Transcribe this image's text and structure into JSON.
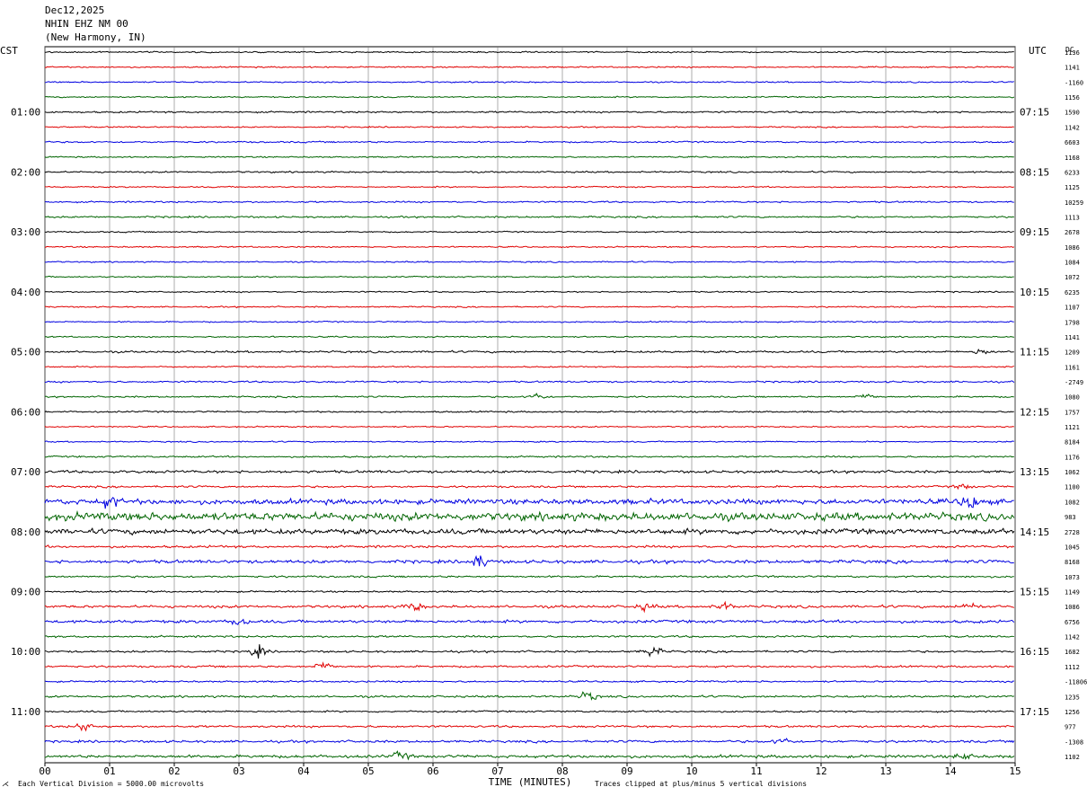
{
  "header": {
    "date": "Dec12,2025",
    "station": "NHIN EHZ NM 00",
    "location": "(New Harmony, IN)"
  },
  "axis": {
    "left_tz": "CST",
    "right_tz": "UTC",
    "dc_header": "DC",
    "xlabel": "TIME (MINUTES)"
  },
  "footer": {
    "scale_note": "Each Vertical Division = 5000.00 microvolts",
    "clip_note": "Traces clipped at plus/minus 5 vertical divisions"
  },
  "chart_data": {
    "type": "line",
    "title": "NHIN EHZ NM 00 helicorder",
    "xlabel": "TIME (MINUTES)",
    "xlim": [
      0,
      15
    ],
    "x_ticks": [
      "00",
      "01",
      "02",
      "03",
      "04",
      "05",
      "06",
      "07",
      "08",
      "09",
      "10",
      "11",
      "12",
      "13",
      "14",
      "15"
    ],
    "row_minutes": 15,
    "trace_count": 48,
    "trace_colors": [
      "#000000",
      "#e00000",
      "#0000e0",
      "#006400"
    ],
    "left_hour_labels": [
      {
        "row": 4,
        "text": "01:00"
      },
      {
        "row": 8,
        "text": "02:00"
      },
      {
        "row": 12,
        "text": "03:00"
      },
      {
        "row": 16,
        "text": "04:00"
      },
      {
        "row": 20,
        "text": "05:00"
      },
      {
        "row": 24,
        "text": "06:00"
      },
      {
        "row": 28,
        "text": "07:00"
      },
      {
        "row": 32,
        "text": "08:00"
      },
      {
        "row": 36,
        "text": "09:00"
      },
      {
        "row": 40,
        "text": "10:00"
      },
      {
        "row": 44,
        "text": "11:00"
      }
    ],
    "right_hour_labels": [
      {
        "row": 4,
        "text": "07:15"
      },
      {
        "row": 8,
        "text": "08:15"
      },
      {
        "row": 12,
        "text": "09:15"
      },
      {
        "row": 16,
        "text": "10:15"
      },
      {
        "row": 20,
        "text": "11:15"
      },
      {
        "row": 24,
        "text": "12:15"
      },
      {
        "row": 28,
        "text": "13:15"
      },
      {
        "row": 32,
        "text": "14:15"
      },
      {
        "row": 36,
        "text": "15:15"
      },
      {
        "row": 40,
        "text": "16:15"
      },
      {
        "row": 44,
        "text": "17:15"
      }
    ],
    "dc_offsets": [
      "1136",
      "1141",
      "-1160",
      "1156",
      "1590",
      "1142",
      "6603",
      "1168",
      "6233",
      "1125",
      "10259",
      "1113",
      "2678",
      "1086",
      "1084",
      "1072",
      "6235",
      "1107",
      "1798",
      "1141",
      "1209",
      "1161",
      "-2749",
      "1080",
      "1757",
      "1121",
      "8184",
      "1176",
      "1062",
      "1100",
      "1082",
      "983",
      "2728",
      "1045",
      "8168",
      "1073",
      "1149",
      "1086",
      "6756",
      "1142",
      "1682",
      "1112",
      "-11806",
      "1235",
      "1256",
      "977",
      "-1308",
      "1102"
    ],
    "trace_activity": [
      1,
      1,
      1,
      1,
      1.3,
      1,
      1.2,
      1,
      1.2,
      1,
      1.2,
      1.3,
      1,
      1,
      1,
      1,
      1,
      1,
      1,
      1,
      1.5,
      1,
      1.3,
      1.2,
      1.2,
      1,
      1,
      1.3,
      2,
      1.5,
      4,
      6,
      4,
      1.8,
      2.5,
      1.5,
      1.3,
      2,
      2.2,
      1.5,
      1.5,
      1.5,
      1.3,
      1.6,
      1.3,
      1.6,
      1.8,
      2.2
    ],
    "events": [
      {
        "row": 20,
        "minute": 14.5,
        "amplitude": 6
      },
      {
        "row": 23,
        "minute": 7.6,
        "amplitude": 6
      },
      {
        "row": 23,
        "minute": 12.7,
        "amplitude": 5
      },
      {
        "row": 29,
        "minute": 14.2,
        "amplitude": 5
      },
      {
        "row": 30,
        "minute": 14.3,
        "amplitude": 14
      },
      {
        "row": 30,
        "minute": 1.0,
        "amplitude": 10
      },
      {
        "row": 34,
        "minute": 6.7,
        "amplitude": 12
      },
      {
        "row": 37,
        "minute": 5.7,
        "amplitude": 8
      },
      {
        "row": 37,
        "minute": 9.3,
        "amplitude": 6
      },
      {
        "row": 37,
        "minute": 10.5,
        "amplitude": 6
      },
      {
        "row": 37,
        "minute": 14.3,
        "amplitude": 7
      },
      {
        "row": 38,
        "minute": 3.0,
        "amplitude": 6
      },
      {
        "row": 40,
        "minute": 3.3,
        "amplitude": 10
      },
      {
        "row": 40,
        "minute": 9.4,
        "amplitude": 9
      },
      {
        "row": 41,
        "minute": 4.3,
        "amplitude": 8
      },
      {
        "row": 43,
        "minute": 8.4,
        "amplitude": 8
      },
      {
        "row": 45,
        "minute": 0.6,
        "amplitude": 7
      },
      {
        "row": 46,
        "minute": 11.4,
        "amplitude": 6
      },
      {
        "row": 47,
        "minute": 5.5,
        "amplitude": 6
      },
      {
        "row": 47,
        "minute": 14.2,
        "amplitude": 6
      }
    ],
    "grid": "vertical lines at each minute"
  }
}
